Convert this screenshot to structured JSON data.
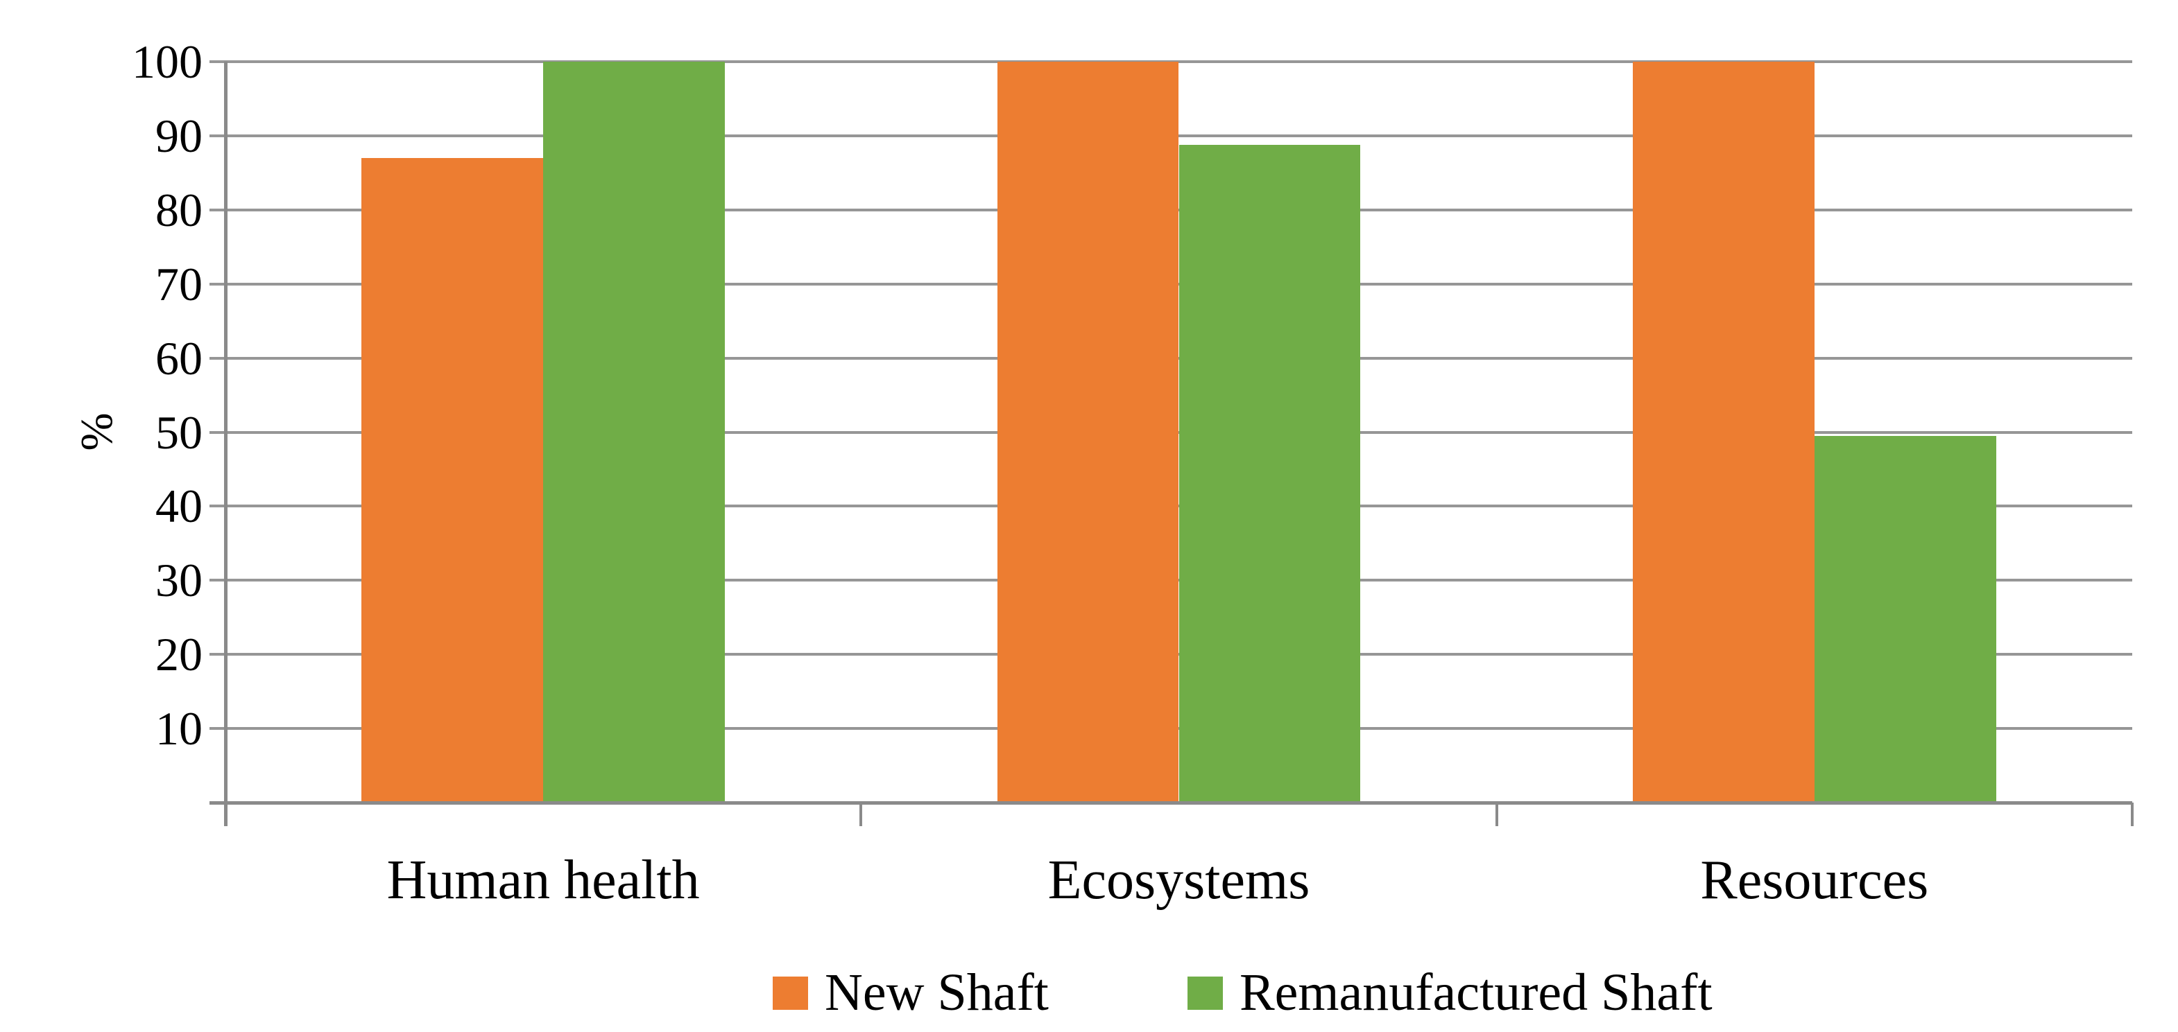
{
  "chart_data": {
    "type": "bar",
    "title": "",
    "xlabel": "",
    "ylabel": "%",
    "ylim": [
      0,
      100
    ],
    "yticks": [
      10,
      20,
      30,
      40,
      50,
      60,
      70,
      80,
      90,
      100
    ],
    "grid": "horizontal",
    "legend_position": "bottom",
    "categories": [
      "Human health",
      "Ecosystems",
      "Resources"
    ],
    "series": [
      {
        "name": "New Shaft",
        "color": "#ED7D31",
        "values": [
          87,
          100,
          100
        ]
      },
      {
        "name": "Remanufactured Shaft",
        "color": "#70AD47",
        "values": [
          100,
          88.8,
          49.5
        ]
      }
    ]
  },
  "colors": {
    "gridline": "#969696",
    "axis": "#8a8a8a",
    "background": "#ffffff",
    "text": "#000000"
  }
}
